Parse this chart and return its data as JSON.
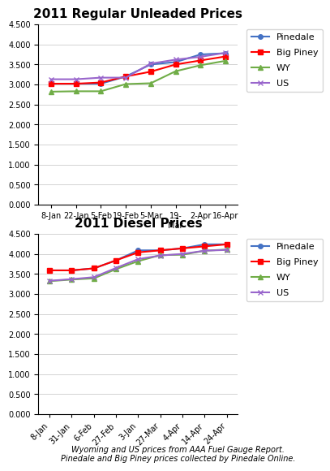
{
  "unleaded": {
    "title": "2011 Regular Unleaded Prices",
    "x_labels": [
      "8-Jan",
      "22-Jan",
      "5-Feb",
      "19-Feb",
      "5-Mar",
      "19-\nMar",
      "2-Apr",
      "16-Apr"
    ],
    "x_labels_raw": [
      "8-Jan",
      "22-Jan",
      "5-Feb",
      "19-Feb",
      "5-Mar",
      "19-Mar",
      "2-Apr",
      "16-Apr"
    ],
    "pinedale": [
      3.019,
      3.019,
      3.019,
      3.199,
      3.499,
      3.559,
      3.749,
      3.779
    ],
    "big_piney": [
      3.019,
      3.019,
      3.049,
      3.199,
      3.319,
      3.499,
      3.599,
      3.699
    ],
    "wy": [
      2.82,
      2.83,
      2.83,
      3.01,
      3.03,
      3.33,
      3.48,
      3.59
    ],
    "us": [
      3.13,
      3.13,
      3.17,
      3.17,
      3.52,
      3.62,
      3.69,
      3.79
    ]
  },
  "diesel": {
    "title": "2011 Diesel Prices",
    "x_labels": [
      "8-Jan",
      "31-Jan",
      "6-Feb",
      "27-Feb",
      "3-Jan",
      "27-Mar",
      "4-Apr",
      "14-Apr",
      "24-Apr"
    ],
    "pinedale": [
      3.589,
      3.589,
      3.639,
      3.839,
      4.089,
      4.089,
      4.139,
      4.239,
      4.239
    ],
    "big_piney": [
      3.589,
      3.589,
      3.639,
      3.839,
      4.039,
      4.089,
      4.139,
      4.189,
      4.239
    ],
    "wy": [
      3.32,
      3.36,
      3.39,
      3.62,
      3.82,
      3.97,
      3.98,
      4.08,
      4.11
    ],
    "us": [
      3.33,
      3.37,
      3.42,
      3.65,
      3.87,
      3.96,
      4.0,
      4.08,
      4.1
    ]
  },
  "colors": {
    "pinedale": "#4472C4",
    "big_piney": "#FF0000",
    "wy": "#70AD47",
    "us": "#9966CC"
  },
  "footer": "Wyoming and US prices from AAA Fuel Gauge Report.\nPinedale and Big Piney prices collected by Pinedale Online.",
  "ylim": [
    0.0,
    4.5
  ],
  "yticks": [
    0.0,
    0.5,
    1.0,
    1.5,
    2.0,
    2.5,
    3.0,
    3.5,
    4.0,
    4.5
  ]
}
